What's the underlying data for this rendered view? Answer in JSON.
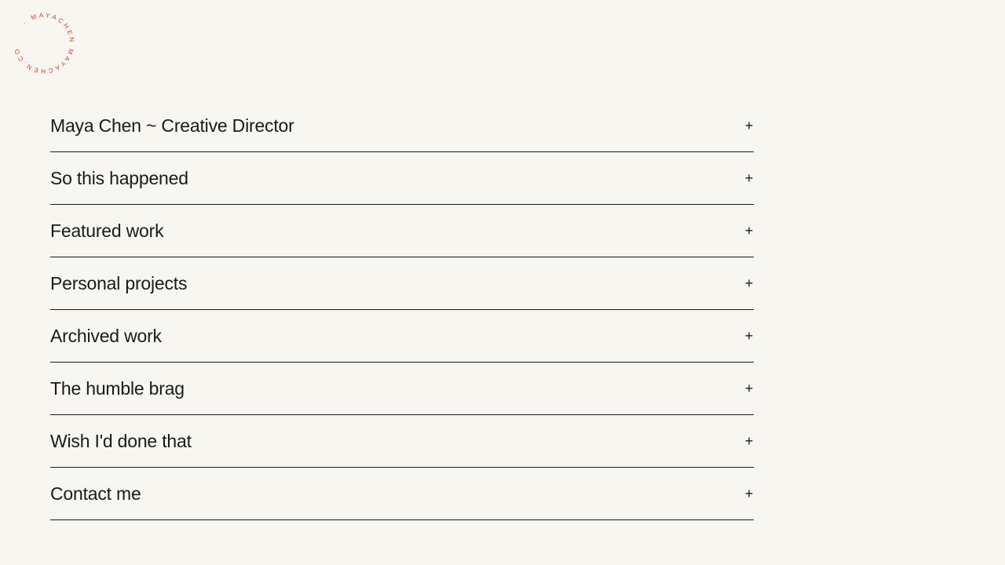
{
  "logo": {
    "text": "· MAYACHEN MAYACHEN.COM ",
    "color": "#d9342b"
  },
  "accordion": [
    {
      "label": "Maya Chen ~ Creative Director",
      "icon": "plus-icon"
    },
    {
      "label": "So this happened",
      "icon": "plus-icon"
    },
    {
      "label": "Featured work",
      "icon": "plus-icon"
    },
    {
      "label": "Personal projects",
      "icon": "plus-icon"
    },
    {
      "label": "Archived work",
      "icon": "plus-icon"
    },
    {
      "label": "The humble brag",
      "icon": "plus-icon"
    },
    {
      "label": "Wish I'd done that",
      "icon": "plus-icon"
    },
    {
      "label": "Contact me",
      "icon": "plus-icon"
    }
  ],
  "plus_symbol": "+"
}
